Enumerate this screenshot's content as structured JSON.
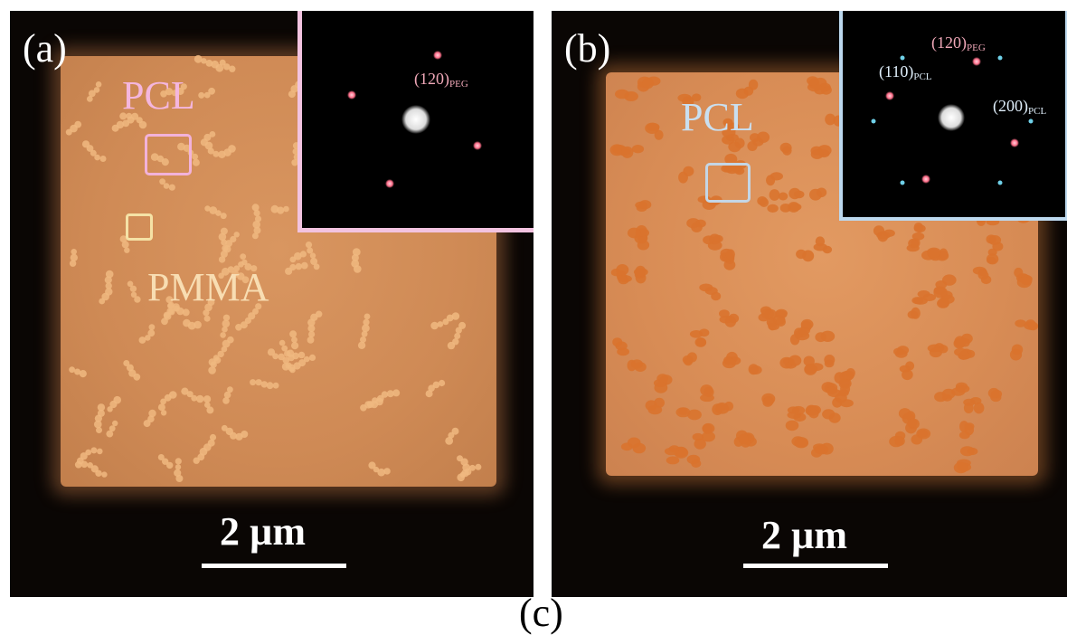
{
  "panels": {
    "a": {
      "label": "(a)",
      "regions": {
        "pcl": "PCL",
        "pmma": "PMMA"
      },
      "scale_bar": "2 µm",
      "inset": {
        "spots": [
          {
            "miller": "(120)",
            "phase": "PEG"
          }
        ]
      },
      "colors": {
        "sample": "#cf8a55",
        "domain": "#f0b880",
        "pcl_box": "#f2b2da",
        "pmma_box": "#f5e2a6",
        "inset_border": "#f2c3e0",
        "spot_peg": "#ff6f8a"
      }
    },
    "b": {
      "label": "(b)",
      "regions": {
        "pcl": "PCL"
      },
      "scale_bar": "2 µm",
      "inset": {
        "spots": [
          {
            "miller": "(120)",
            "phase": "PEG"
          },
          {
            "miller": "(110)",
            "phase": "PCL"
          },
          {
            "miller": "(200)",
            "phase": "PCL"
          }
        ]
      },
      "colors": {
        "sample": "#d88c55",
        "domain": "#d9732e",
        "pcl_box": "#c4d6e6",
        "inset_border": "#bcd8ee",
        "spot_peg": "#ff6f8a",
        "spot_pcl": "#6fd0e8"
      }
    }
  },
  "caption": "(c)"
}
